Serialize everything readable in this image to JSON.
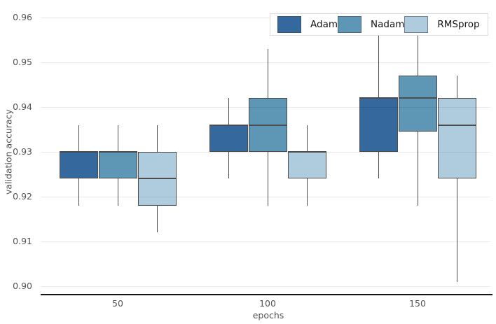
{
  "figure": {
    "background": "#ffffff"
  },
  "legend": {
    "position": "top-right",
    "items": [
      {
        "label": "Adam",
        "color": "#35689c"
      },
      {
        "label": "Nadam",
        "color": "#5e97b5"
      },
      {
        "label": "RMSprop",
        "color": "#afccde"
      }
    ]
  },
  "colors": {
    "box_stroke": "#4d4d4d",
    "gridline": "#ebebeb",
    "axis_line": "#141414",
    "tick_text": "#545454"
  },
  "chart_data": {
    "type": "box",
    "title": "",
    "xlabel": "epochs",
    "ylabel": "validation accuracy",
    "categories": [
      "50",
      "100",
      "150"
    ],
    "xtick_labels": [
      "50",
      "100",
      "150"
    ],
    "ytick_values": [
      0.9,
      0.91,
      0.92,
      0.93,
      0.94,
      0.95,
      0.96
    ],
    "ytick_labels": [
      "0.90",
      "0.91",
      "0.92",
      "0.93",
      "0.94",
      "0.95",
      "0.96"
    ],
    "ylim": [
      0.898,
      0.964
    ],
    "grid": true,
    "grid_over_marks": true,
    "legend_position": "top-right",
    "series": [
      {
        "name": "Adam",
        "color": "#35689c",
        "boxes": [
          {
            "category": "50",
            "whislo": 0.918,
            "q1": 0.924,
            "med": 0.93,
            "q3": 0.93,
            "whishi": 0.936
          },
          {
            "category": "100",
            "whislo": 0.924,
            "q1": 0.93,
            "med": 0.936,
            "q3": 0.936,
            "whishi": 0.942
          },
          {
            "category": "150",
            "whislo": 0.924,
            "q1": 0.93,
            "med": 0.942,
            "q3": 0.942,
            "whishi": 0.959,
            "note": "upper whisker hidden behind legend"
          }
        ]
      },
      {
        "name": "Nadam",
        "color": "#5e97b5",
        "boxes": [
          {
            "category": "50",
            "whislo": 0.918,
            "q1": 0.924,
            "med": 0.93,
            "q3": 0.93,
            "whishi": 0.936
          },
          {
            "category": "100",
            "whislo": 0.918,
            "q1": 0.93,
            "med": 0.936,
            "q3": 0.942,
            "whishi": 0.953
          },
          {
            "category": "150",
            "whislo": 0.918,
            "q1": 0.9345,
            "med": 0.942,
            "q3": 0.947,
            "whishi": 0.959,
            "note": "upper whisker hidden behind legend"
          }
        ]
      },
      {
        "name": "RMSprop",
        "color": "#afccde",
        "boxes": [
          {
            "category": "50",
            "whislo": 0.912,
            "q1": 0.918,
            "med": 0.924,
            "q3": 0.93,
            "whishi": 0.936
          },
          {
            "category": "100",
            "whislo": 0.918,
            "q1": 0.924,
            "med": 0.93,
            "q3": 0.93,
            "whishi": 0.936
          },
          {
            "category": "150",
            "whislo": 0.901,
            "q1": 0.924,
            "med": 0.936,
            "q3": 0.942,
            "whishi": 0.947
          }
        ]
      }
    ]
  }
}
